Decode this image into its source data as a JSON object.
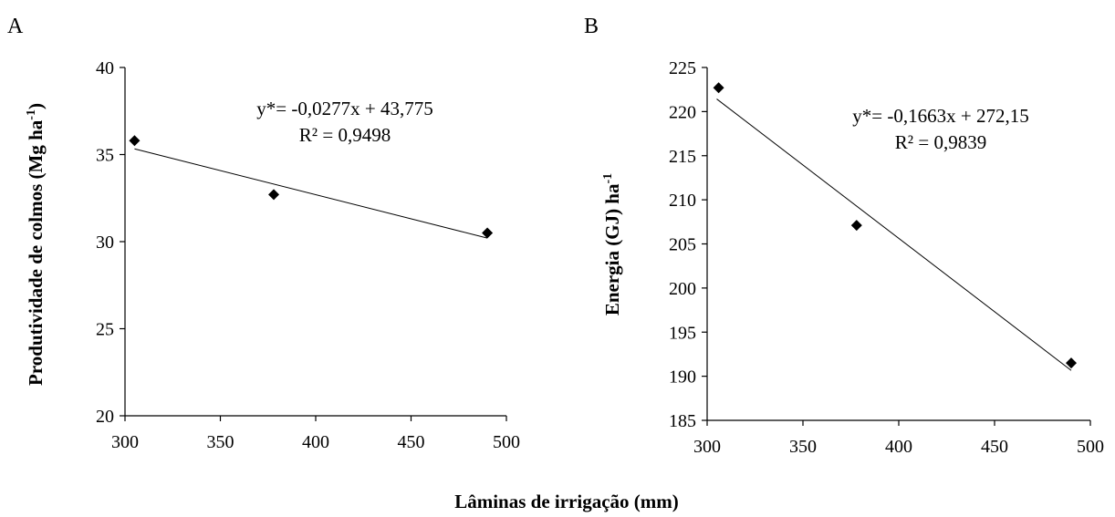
{
  "xlabel": "Lâminas de irrigação (mm)",
  "chart_data": [
    {
      "type": "scatter",
      "panel": "A",
      "ylabel_main": "Produtividade  de colmos  (Mg ha",
      "ylabel_sup": "-1",
      "ylabel_end": ")",
      "xlim": [
        300,
        500
      ],
      "ylim": [
        20,
        40
      ],
      "xticks": [
        300,
        350,
        400,
        450,
        500
      ],
      "yticks": [
        20,
        25,
        30,
        35,
        40
      ],
      "points": [
        {
          "x": 305,
          "y": 35.8
        },
        {
          "x": 378,
          "y": 32.7
        },
        {
          "x": 490,
          "y": 30.5
        }
      ],
      "trendline": {
        "slope": -0.0277,
        "intercept": 43.775,
        "x_range": [
          305,
          490
        ]
      },
      "equation": "y*= -0,0277x + 43,775",
      "r2": "R² = 0,9498"
    },
    {
      "type": "scatter",
      "panel": "B",
      "ylabel_main": "Energia  (GJ) ha",
      "ylabel_sup": "-1",
      "ylabel_end": "",
      "xlim": [
        300,
        500
      ],
      "ylim": [
        185,
        225
      ],
      "xticks": [
        300,
        350,
        400,
        450,
        500
      ],
      "yticks": [
        185,
        190,
        195,
        200,
        205,
        210,
        215,
        220,
        225
      ],
      "points": [
        {
          "x": 306,
          "y": 222.7
        },
        {
          "x": 378,
          "y": 207.1
        },
        {
          "x": 490,
          "y": 191.5
        }
      ],
      "trendline": {
        "slope": -0.1663,
        "intercept": 272.15,
        "x_range": [
          305,
          490
        ]
      },
      "equation": "y*= -0,1663x + 272,15",
      "r2": "R² = 0,9839"
    }
  ]
}
